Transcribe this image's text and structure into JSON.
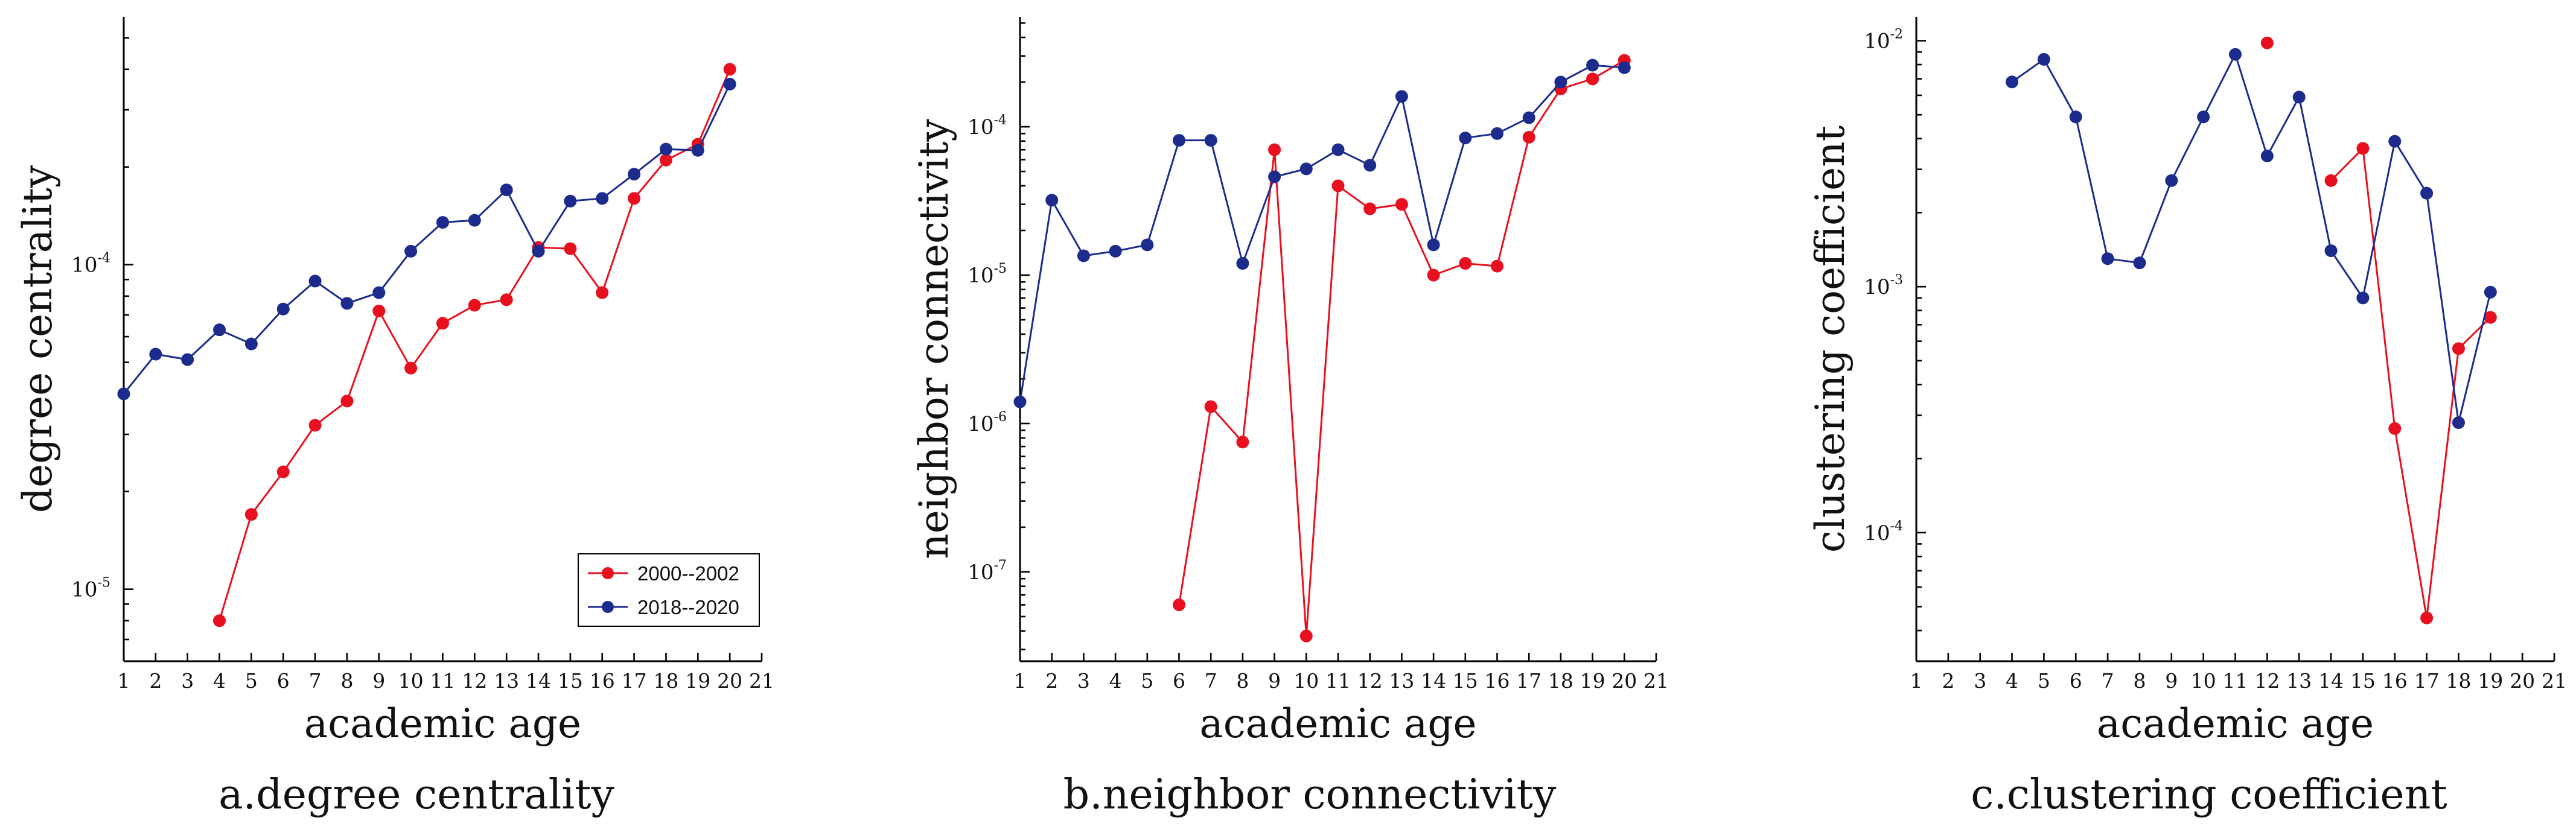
{
  "colors": {
    "s2000": "#e8101e",
    "s2018": "#1c2b8c"
  },
  "legend": [
    "2000--2002",
    "2018--2020"
  ],
  "chart_data": [
    {
      "type": "line",
      "caption": "a.degree centrality",
      "xlabel": "academic age",
      "ylabel": "degree centrality",
      "yscale": "log",
      "xlim": [
        1,
        21
      ],
      "ylim": [
        6e-06,
        0.00058
      ],
      "x_ticks": [
        1,
        2,
        3,
        4,
        5,
        6,
        7,
        8,
        9,
        10,
        11,
        12,
        13,
        14,
        15,
        16,
        17,
        18,
        19,
        20,
        21
      ],
      "y_ticks": [
        {
          "base": "10",
          "exp": "-5",
          "value": 1e-05
        },
        {
          "base": "10",
          "exp": "-4",
          "value": 0.0001
        }
      ],
      "legend": "bottom-right",
      "series": [
        {
          "name": "2000--2002",
          "x": [
            4,
            5,
            6,
            7,
            8,
            9,
            10,
            11,
            12,
            13,
            14,
            15,
            16,
            17,
            18,
            19,
            20
          ],
          "y": [
            8e-06,
            1.7e-05,
            2.3e-05,
            3.2e-05,
            3.8e-05,
            7.2e-05,
            4.8e-05,
            6.6e-05,
            7.5e-05,
            7.8e-05,
            0.000113,
            0.000112,
            8.2e-05,
            0.00016,
            0.00021,
            0.000235,
            0.0004
          ]
        },
        {
          "name": "2018--2020",
          "x": [
            1,
            2,
            3,
            4,
            5,
            6,
            7,
            8,
            9,
            10,
            11,
            12,
            13,
            14,
            15,
            16,
            17,
            18,
            19,
            20
          ],
          "y": [
            4e-05,
            5.3e-05,
            5.1e-05,
            6.3e-05,
            5.7e-05,
            7.3e-05,
            8.9e-05,
            7.6e-05,
            8.2e-05,
            0.00011,
            0.000135,
            0.000137,
            0.00017,
            0.00011,
            0.000157,
            0.00016,
            0.00019,
            0.000227,
            0.000225,
            0.00036
          ]
        }
      ]
    },
    {
      "type": "line",
      "caption": "b.neighbor connectivity",
      "xlabel": "academic age",
      "ylabel": "neighbor connectivity",
      "yscale": "log",
      "xlim": [
        1,
        21
      ],
      "ylim": [
        2.5e-08,
        0.00055
      ],
      "x_ticks": [
        1,
        2,
        3,
        4,
        5,
        6,
        7,
        8,
        9,
        10,
        11,
        12,
        13,
        14,
        15,
        16,
        17,
        18,
        19,
        20,
        21
      ],
      "y_ticks": [
        {
          "base": "10",
          "exp": "-7",
          "value": 1e-07
        },
        {
          "base": "10",
          "exp": "-6",
          "value": 1e-06
        },
        {
          "base": "10",
          "exp": "-5",
          "value": 1e-05
        },
        {
          "base": "10",
          "exp": "-4",
          "value": 0.0001
        }
      ],
      "series": [
        {
          "name": "2000--2002",
          "x": [
            6,
            7,
            8,
            9,
            10,
            11,
            12,
            13,
            14,
            15,
            16,
            17,
            18,
            19,
            20
          ],
          "y": [
            6e-08,
            1.3e-06,
            7.5e-07,
            7e-05,
            3.7e-08,
            4e-05,
            2.8e-05,
            3e-05,
            1e-05,
            1.2e-05,
            1.15e-05,
            8.5e-05,
            0.00018,
            0.00021,
            0.00028
          ]
        },
        {
          "name": "2018--2020",
          "x": [
            1,
            2,
            3,
            4,
            5,
            6,
            7,
            8,
            9,
            10,
            11,
            12,
            13,
            14,
            15,
            16,
            17,
            18,
            19,
            20
          ],
          "y": [
            1.4e-06,
            3.2e-05,
            1.35e-05,
            1.45e-05,
            1.6e-05,
            8.1e-05,
            8.1e-05,
            1.2e-05,
            4.6e-05,
            5.2e-05,
            7e-05,
            5.5e-05,
            0.00016,
            1.6e-05,
            8.4e-05,
            9e-05,
            0.000115,
            0.0002,
            0.00026,
            0.00025
          ]
        }
      ]
    },
    {
      "type": "line",
      "caption": "c.clustering coefficient",
      "xlabel": "academic age",
      "ylabel": "clustering coefficient",
      "yscale": "log",
      "xlim": [
        1,
        21
      ],
      "ylim": [
        3e-05,
        0.0125
      ],
      "x_ticks": [
        1,
        2,
        3,
        4,
        5,
        6,
        7,
        8,
        9,
        10,
        11,
        12,
        13,
        14,
        15,
        16,
        17,
        18,
        19,
        20,
        21
      ],
      "y_ticks": [
        {
          "base": "10",
          "exp": "-4",
          "value": 0.0001
        },
        {
          "base": "10",
          "exp": "-3",
          "value": 0.001
        },
        {
          "base": "10",
          "exp": "-2",
          "value": 0.01
        }
      ],
      "series": [
        {
          "name": "2000--2002",
          "x": [
            12,
            14,
            15,
            16,
            17,
            18,
            19
          ],
          "y": [
            0.0098,
            0.0027,
            0.00365,
            0.000265,
            4.5e-05,
            0.00056,
            0.00075
          ],
          "segments": [
            [
              12
            ],
            [
              14,
              15,
              16,
              17,
              18,
              19
            ]
          ]
        },
        {
          "name": "2018--2020",
          "x": [
            4,
            5,
            6,
            7,
            8,
            9,
            10,
            11,
            12,
            13,
            14,
            15,
            16,
            17,
            18,
            19
          ],
          "y": [
            0.0068,
            0.0084,
            0.0049,
            0.0013,
            0.00125,
            0.0027,
            0.0049,
            0.0088,
            0.0034,
            0.0059,
            0.0014,
            0.0009,
            0.0039,
            0.0024,
            0.00028,
            0.00095
          ]
        }
      ]
    }
  ]
}
